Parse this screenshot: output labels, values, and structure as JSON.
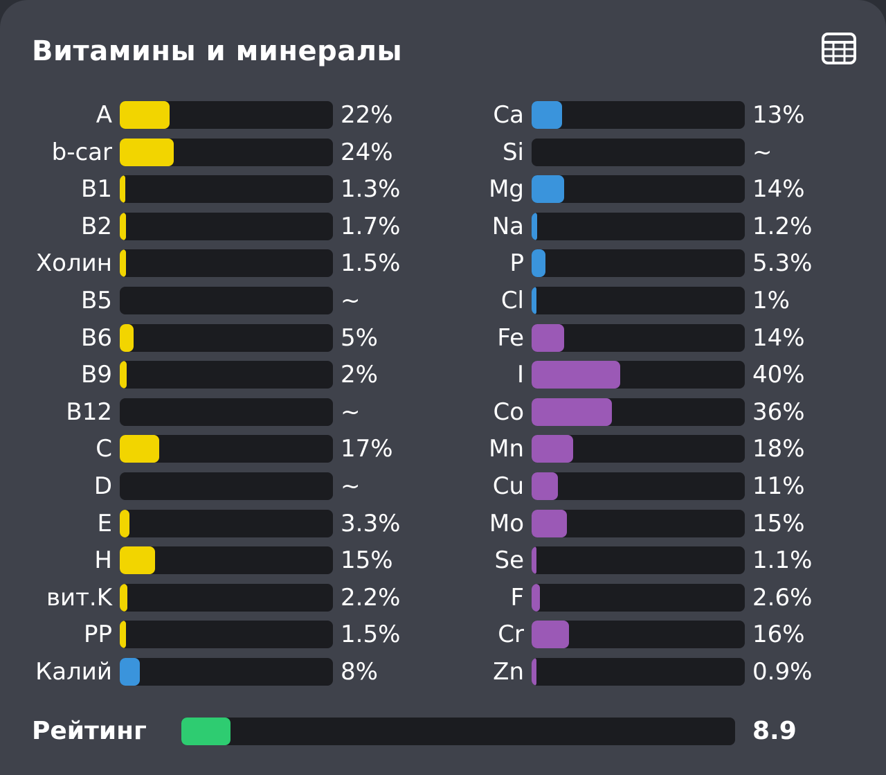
{
  "title": "Витамины и минералы",
  "colors": {
    "vitamins": "#f2d500",
    "potassium": "#3a94dc",
    "minerals_blue": "#3a94dc",
    "minerals_purple": "#9b59b6",
    "rating": "#2ecc71"
  },
  "icons": {
    "table_view": "table-grid-icon"
  },
  "chart_data": [
    {
      "type": "bar",
      "orientation": "horizontal",
      "categories": [
        "A",
        "b-car",
        "B1",
        "B2",
        "Холин",
        "B5",
        "B6",
        "B9",
        "B12",
        "C",
        "D",
        "E",
        "H",
        "вит.K",
        "PP",
        "Калий"
      ],
      "values": [
        22,
        24,
        1.3,
        1.7,
        1.5,
        null,
        5,
        2,
        null,
        17,
        null,
        3.3,
        15,
        2.2,
        1.5,
        8
      ],
      "labels": [
        "22%",
        "24%",
        "1.3%",
        "1.7%",
        "1.5%",
        "~",
        "5%",
        "2%",
        "~",
        "17%",
        "~",
        "3.3%",
        "15%",
        "2.2%",
        "1.5%",
        "8%"
      ],
      "bar_colors": [
        "#f2d500",
        "#f2d500",
        "#f2d500",
        "#f2d500",
        "#f2d500",
        "#f2d500",
        "#f2d500",
        "#f2d500",
        "#f2d500",
        "#f2d500",
        "#f2d500",
        "#f2d500",
        "#f2d500",
        "#f2d500",
        "#f2d500",
        "#3a94dc"
      ],
      "xlim": [
        0,
        100
      ]
    },
    {
      "type": "bar",
      "orientation": "horizontal",
      "categories": [
        "Ca",
        "Si",
        "Mg",
        "Na",
        "P",
        "Cl",
        "Fe",
        "I",
        "Co",
        "Mn",
        "Cu",
        "Mo",
        "Se",
        "F",
        "Cr",
        "Zn"
      ],
      "values": [
        13,
        null,
        14,
        1.2,
        5.3,
        1,
        14,
        40,
        36,
        18,
        11,
        15,
        1.1,
        2.6,
        16,
        0.9
      ],
      "labels": [
        "13%",
        "~",
        "14%",
        "1.2%",
        "5.3%",
        "1%",
        "14%",
        "40%",
        "36%",
        "18%",
        "11%",
        "15%",
        "1.1%",
        "2.6%",
        "16%",
        "0.9%"
      ],
      "bar_colors": [
        "#3a94dc",
        "#3a94dc",
        "#3a94dc",
        "#3a94dc",
        "#3a94dc",
        "#3a94dc",
        "#9b59b6",
        "#9b59b6",
        "#9b59b6",
        "#9b59b6",
        "#9b59b6",
        "#9b59b6",
        "#9b59b6",
        "#9b59b6",
        "#9b59b6",
        "#9b59b6"
      ],
      "xlim": [
        0,
        100
      ]
    },
    {
      "type": "bar",
      "orientation": "horizontal",
      "categories": [
        "Рейтинг"
      ],
      "values": [
        8.9
      ],
      "labels": [
        "8.9"
      ],
      "bar_colors": [
        "#2ecc71"
      ],
      "xlim": [
        0,
        100
      ]
    }
  ]
}
